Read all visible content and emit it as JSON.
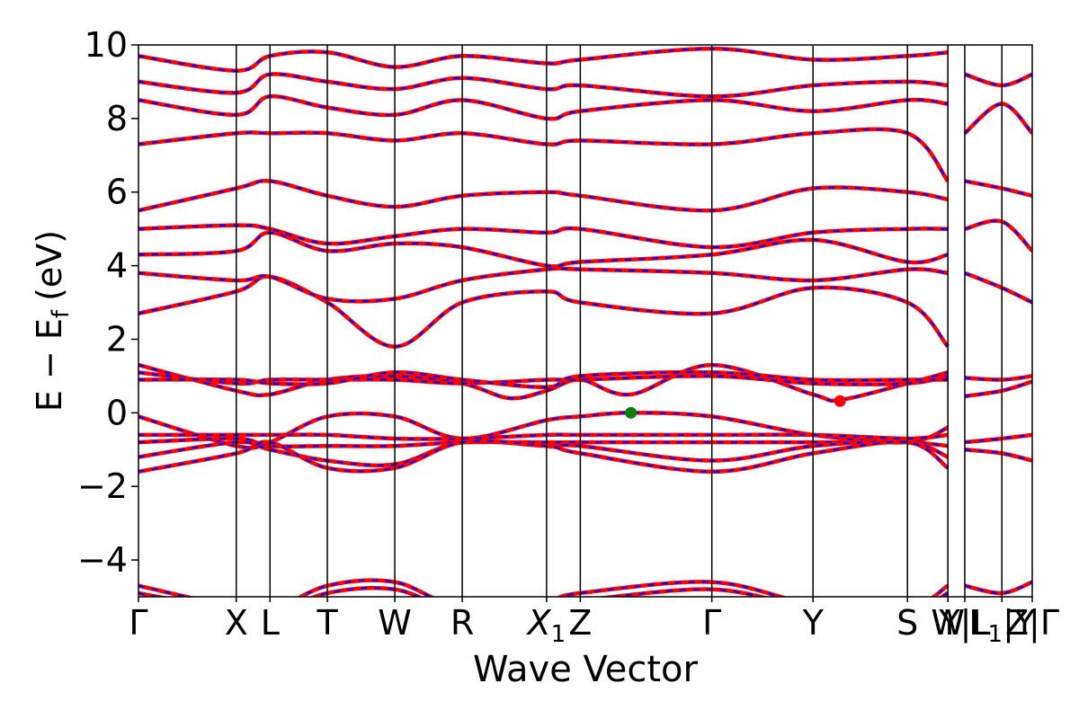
{
  "chart_data": {
    "type": "line",
    "title": "",
    "xlabel": "Wave Vector",
    "ylabel": "E − E_f (eV)",
    "ylabel_parts": {
      "main": "E − E",
      "sub": "f",
      "unit": "(eV)"
    },
    "ylim": [
      -5,
      10
    ],
    "yticks": [
      -4,
      -2,
      0,
      2,
      4,
      6,
      8,
      10
    ],
    "ytick_labels": [
      "−4",
      "−2",
      "0",
      "2",
      "4",
      "6",
      "8",
      "10"
    ],
    "xlim": [
      0,
      26.5
    ],
    "kpoint_ticks": [
      {
        "x": 0.0,
        "label": "Γ"
      },
      {
        "x": 2.9,
        "label": "X"
      },
      {
        "x": 3.9,
        "label": "L"
      },
      {
        "x": 5.6,
        "label": "T"
      },
      {
        "x": 7.6,
        "label": "W"
      },
      {
        "x": 9.6,
        "label": "R"
      },
      {
        "x": 12.1,
        "label": "X",
        "subscript": "1"
      },
      {
        "x": 13.1,
        "label": "Z"
      },
      {
        "x": 17.0,
        "label": "Γ"
      },
      {
        "x": 20.0,
        "label": "Y"
      },
      {
        "x": 22.8,
        "label": "S"
      },
      {
        "x": 24.0,
        "label": "W"
      },
      {
        "x": 24.5,
        "label": "Y|L"
      },
      {
        "x": 25.6,
        "label": "L",
        "subscript": "1",
        "suffix": "|Y"
      },
      {
        "x": 26.5,
        "label": "Z|Γ"
      }
    ],
    "kpath_breaks": [
      24.0,
      25.6
    ],
    "series": [
      {
        "color": "#ff0000",
        "style": "solid",
        "values": []
      },
      {
        "color": "#0000ff",
        "style": "dashed",
        "values": []
      }
    ],
    "bands_valence": [
      {
        "x": [
          0,
          2.9,
          3.9,
          5.6,
          7.6,
          9.6,
          12.1,
          13.1,
          14.6,
          17.0,
          20.0,
          22.8,
          24.0
        ],
        "y": [
          -0.1,
          -0.9,
          -0.8,
          -0.1,
          -0.1,
          -0.7,
          -0.2,
          -0.1,
          0.0,
          -0.1,
          -0.6,
          -0.8,
          -0.4
        ]
      },
      {
        "x": [
          0,
          2.9,
          3.9,
          5.6,
          7.6,
          9.6,
          12.1,
          13.1,
          17.0,
          20.0,
          22.8,
          24.0
        ],
        "y": [
          -0.6,
          -0.6,
          -0.6,
          -0.6,
          -0.7,
          -0.7,
          -0.6,
          -0.6,
          -0.6,
          -0.6,
          -0.7,
          -0.6
        ]
      },
      {
        "x": [
          0,
          2.9,
          3.9,
          5.6,
          7.6,
          9.6,
          12.1,
          13.1,
          17.0,
          20.0,
          22.8,
          24.0
        ],
        "y": [
          -0.8,
          -0.7,
          -0.9,
          -0.9,
          -0.9,
          -0.8,
          -0.8,
          -0.8,
          -0.8,
          -0.8,
          -0.8,
          -0.9
        ]
      },
      {
        "x": [
          0,
          2.9,
          3.9,
          5.6,
          7.6,
          9.6,
          12.1,
          13.1,
          17.0,
          20.0,
          22.8,
          24.0
        ],
        "y": [
          -1.2,
          -0.8,
          -1.0,
          -1.3,
          -1.4,
          -0.8,
          -0.9,
          -0.9,
          -1.3,
          -0.9,
          -0.8,
          -1.2
        ]
      },
      {
        "x": [
          0,
          2.9,
          3.9,
          5.6,
          7.6,
          9.6,
          12.1,
          13.1,
          17.0,
          20.0,
          22.8,
          24.0
        ],
        "y": [
          -1.6,
          -1.1,
          -0.8,
          -1.5,
          -1.5,
          -0.8,
          -0.9,
          -1.1,
          -1.6,
          -1.1,
          -0.8,
          -1.5
        ]
      },
      {
        "x": [
          0,
          2.9,
          3.9,
          5.6,
          7.6,
          9.6,
          12.1,
          13.1,
          17.0,
          20.0,
          22.8,
          24.0
        ],
        "y": [
          -4.7,
          -5.3,
          -5.4,
          -4.7,
          -4.6,
          -5.3,
          -5.1,
          -4.9,
          -4.6,
          -5.2,
          -5.3,
          -4.7
        ]
      },
      {
        "x": [
          0,
          2.9,
          3.9,
          5.6,
          7.6,
          9.6,
          12.1,
          13.1,
          17.0,
          20.0,
          22.8,
          24.0
        ],
        "y": [
          -4.9,
          -5.4,
          -5.5,
          -4.9,
          -4.8,
          -5.4,
          -5.2,
          -5.1,
          -4.8,
          -5.3,
          -5.4,
          -4.9
        ]
      }
    ],
    "bands_conduction": [
      {
        "x": [
          0,
          2.9,
          3.9,
          5.6,
          7.6,
          9.6,
          11.0,
          12.1,
          13.1,
          14.6,
          17.0,
          20.0,
          20.8,
          22.8,
          24.0
        ],
        "y": [
          1.3,
          0.6,
          0.5,
          0.9,
          1.0,
          0.8,
          0.4,
          0.6,
          0.9,
          0.5,
          1.3,
          0.5,
          0.35,
          0.8,
          1.1
        ]
      },
      {
        "x": [
          0,
          2.9,
          3.9,
          5.6,
          7.6,
          9.6,
          12.1,
          13.1,
          17.0,
          20.0,
          22.8,
          24.0
        ],
        "y": [
          1.1,
          0.8,
          0.9,
          0.9,
          0.9,
          0.8,
          0.9,
          0.9,
          1.0,
          0.8,
          0.8,
          1.0
        ]
      },
      {
        "x": [
          0,
          2.9,
          3.9,
          5.6,
          7.6,
          9.6,
          12.1,
          13.1,
          17.0,
          20.0,
          22.8,
          24.0
        ],
        "y": [
          0.9,
          0.9,
          0.8,
          0.8,
          1.1,
          0.9,
          0.7,
          1.0,
          1.1,
          0.9,
          0.9,
          0.9
        ]
      },
      {
        "x": [
          0,
          2.9,
          3.9,
          5.6,
          7.6,
          9.6,
          12.1,
          13.1,
          17.0,
          20.0,
          22.8,
          24.0
        ],
        "y": [
          2.7,
          3.3,
          3.7,
          3.0,
          1.8,
          3.0,
          3.3,
          3.0,
          2.7,
          3.4,
          3.0,
          1.8
        ]
      },
      {
        "x": [
          0,
          2.9,
          3.9,
          5.6,
          7.6,
          9.6,
          12.1,
          13.1,
          17.0,
          20.0,
          22.8,
          24.0
        ],
        "y": [
          3.8,
          3.6,
          3.7,
          3.1,
          3.1,
          3.6,
          3.9,
          3.9,
          3.8,
          3.6,
          3.9,
          3.8
        ]
      },
      {
        "x": [
          0,
          2.9,
          3.9,
          5.6,
          7.6,
          9.6,
          12.1,
          13.1,
          17.0,
          20.0,
          22.8,
          24.0
        ],
        "y": [
          4.3,
          4.4,
          4.9,
          4.4,
          4.6,
          4.5,
          4.0,
          4.1,
          4.3,
          4.7,
          4.1,
          4.3
        ]
      },
      {
        "x": [
          0,
          2.9,
          3.9,
          5.6,
          7.6,
          9.6,
          12.1,
          13.1,
          17.0,
          20.0,
          22.8,
          24.0
        ],
        "y": [
          5.0,
          5.1,
          5.0,
          4.6,
          4.8,
          5.0,
          4.9,
          5.0,
          4.5,
          4.9,
          5.0,
          5.0
        ]
      },
      {
        "x": [
          0,
          2.9,
          3.9,
          5.6,
          7.6,
          9.6,
          12.1,
          13.1,
          17.0,
          20.0,
          22.8,
          24.0
        ],
        "y": [
          5.5,
          6.1,
          6.3,
          5.9,
          5.6,
          5.9,
          6.0,
          5.9,
          5.5,
          6.1,
          6.0,
          5.8
        ]
      },
      {
        "x": [
          0,
          2.9,
          3.9,
          5.6,
          7.6,
          9.6,
          12.1,
          13.1,
          17.0,
          20.0,
          22.8,
          24.0
        ],
        "y": [
          7.3,
          7.6,
          7.6,
          7.6,
          7.4,
          7.6,
          7.3,
          7.4,
          7.3,
          7.6,
          7.6,
          6.3
        ]
      },
      {
        "x": [
          0,
          2.9,
          3.9,
          5.6,
          7.6,
          9.6,
          12.1,
          13.1,
          17.0,
          20.0,
          22.8,
          24.0
        ],
        "y": [
          8.5,
          8.1,
          8.6,
          8.3,
          8.1,
          8.5,
          8.0,
          8.2,
          8.5,
          8.2,
          8.5,
          8.4
        ]
      },
      {
        "x": [
          0,
          2.9,
          3.9,
          5.6,
          7.6,
          9.6,
          12.1,
          13.1,
          17.0,
          20.0,
          22.8,
          24.0
        ],
        "y": [
          9.0,
          8.7,
          9.2,
          9.0,
          8.8,
          9.1,
          8.8,
          8.9,
          8.6,
          8.9,
          9.0,
          8.9
        ]
      },
      {
        "x": [
          0,
          2.9,
          3.9,
          5.6,
          7.6,
          9.6,
          12.1,
          13.1,
          17.0,
          20.0,
          22.8,
          24.0
        ],
        "y": [
          9.7,
          9.3,
          9.7,
          9.8,
          9.4,
          9.7,
          9.5,
          9.6,
          9.9,
          9.6,
          9.7,
          9.8
        ]
      }
    ],
    "bands_right_segment": [
      {
        "x": [
          24.5,
          25.6,
          26.5
        ],
        "y": [
          0.45,
          0.6,
          0.85
        ]
      },
      {
        "x": [
          24.5,
          25.6,
          26.5
        ],
        "y": [
          0.95,
          0.9,
          1.0
        ]
      },
      {
        "x": [
          24.5,
          25.6,
          26.5
        ],
        "y": [
          -0.8,
          -0.7,
          -0.6
        ]
      },
      {
        "x": [
          24.5,
          25.6,
          26.5
        ],
        "y": [
          -1.0,
          -1.1,
          -1.3
        ]
      },
      {
        "x": [
          24.5,
          25.6,
          26.5
        ],
        "y": [
          3.8,
          3.4,
          3.0
        ]
      },
      {
        "x": [
          24.5,
          25.6,
          26.5
        ],
        "y": [
          5.0,
          5.2,
          4.4
        ]
      },
      {
        "x": [
          24.5,
          25.6,
          26.5
        ],
        "y": [
          6.3,
          6.1,
          5.9
        ]
      },
      {
        "x": [
          24.5,
          25.6,
          26.5
        ],
        "y": [
          7.6,
          8.4,
          7.6
        ]
      },
      {
        "x": [
          24.5,
          25.6,
          26.5
        ],
        "y": [
          9.2,
          8.9,
          9.2
        ]
      },
      {
        "x": [
          24.5,
          25.6,
          26.5
        ],
        "y": [
          -4.7,
          -4.9,
          -4.6
        ]
      }
    ],
    "markers": [
      {
        "name": "vbm-marker",
        "x": 14.6,
        "y": 0.0,
        "color": "#008000"
      },
      {
        "name": "cbm-marker",
        "x": 20.8,
        "y": 0.32,
        "color": "#ff0000"
      }
    ],
    "grid": false
  }
}
